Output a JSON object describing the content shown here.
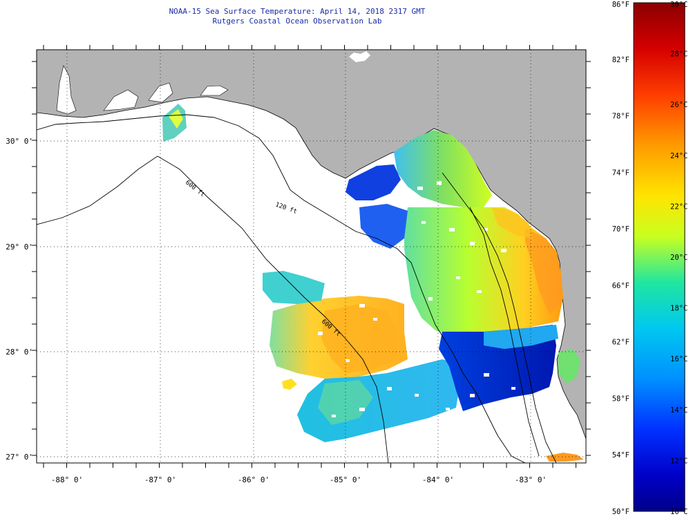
{
  "header": {
    "title": "NOAA-15 Sea Surface Temperature:  April 14, 2018 2317 GMT",
    "subtitle": "Rutgers Coastal Ocean Observation Lab"
  },
  "map": {
    "longitude_labels": [
      {
        "lon": -88,
        "label": "-88° 0'"
      },
      {
        "lon": -87,
        "label": "-87° 0'"
      },
      {
        "lon": -86,
        "label": "-86° 0'"
      },
      {
        "lon": -85,
        "label": "-85° 0'"
      },
      {
        "lon": -84,
        "label": "-84° 0'"
      },
      {
        "lon": -83,
        "label": "-83° 0'"
      }
    ],
    "latitude_labels": [
      {
        "lat": 30,
        "label": "30° 0'"
      },
      {
        "lat": 29,
        "label": "29° 0'"
      },
      {
        "lat": 28,
        "label": "28° 0'"
      },
      {
        "lat": 27,
        "label": "27° 0'"
      }
    ],
    "bathymetry_labels": [
      {
        "label": "600 ft"
      },
      {
        "label": "120 ft"
      },
      {
        "label": "600 ft"
      }
    ],
    "colors": {
      "land": "#b3b3b3",
      "ocean_nodata": "#ffffff",
      "coastline": "#000000"
    }
  },
  "colorbar": {
    "fahrenheit_labels": [
      "86°F",
      "82°F",
      "78°F",
      "74°F",
      "70°F",
      "66°F",
      "62°F",
      "58°F",
      "54°F",
      "50°F"
    ],
    "celsius_labels": [
      "30°C",
      "28°C",
      "26°C",
      "24°C",
      "22°C",
      "20°C",
      "18°C",
      "16°C",
      "14°C",
      "12°C",
      "10°C"
    ],
    "scale_colors": [
      "#8b0000",
      "#ff0000",
      "#ff8c00",
      "#ffff00",
      "#00e5a0",
      "#00bfff",
      "#0050ff",
      "#0000a0"
    ]
  }
}
